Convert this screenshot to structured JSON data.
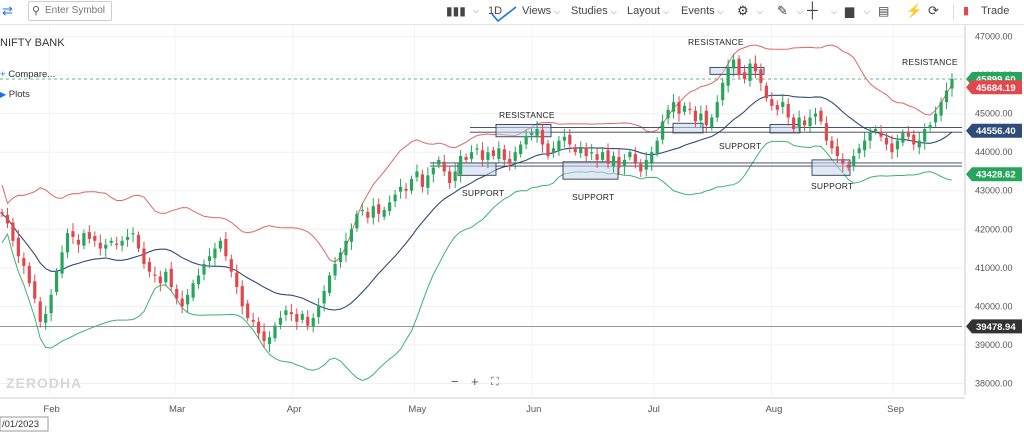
{
  "toolbar": {
    "search_placeholder": "Enter Symbol",
    "interval": "1D",
    "views": "Views",
    "studies": "Studies",
    "layout": "Layout",
    "events": "Events",
    "trade": "Trade"
  },
  "left_panel": {
    "symbol": "NIFTY BANK",
    "compare": "Compare...",
    "plots": "Plots"
  },
  "watermark": "ZERODHA",
  "colors": {
    "up": "#26a65b",
    "down": "#e0484e",
    "upper_band": "#e06666",
    "lower_band": "#3cb371",
    "middle_band": "#2e4b7a",
    "accent": "#1a73e8"
  },
  "chart_data": {
    "type": "candlestick",
    "y_ticks": [
      38000,
      39000,
      40000,
      41000,
      42000,
      43000,
      44000,
      45000,
      46000,
      47000
    ],
    "y_tick_labels": [
      "38000.00",
      "39000.00",
      "40000.00",
      "41000.00",
      "42000.00",
      "43000.00",
      "44000.00",
      "45000.00",
      "46000.00",
      "47000.00"
    ],
    "x_labels": [
      "Feb",
      "Mar",
      "Apr",
      "May",
      "Jun",
      "Jul",
      "Aug",
      "Sep"
    ],
    "crosshair_date": "/01/2023",
    "price_badges": [
      {
        "value": 45899.6,
        "label": "45899.60",
        "color": "#26a65b"
      },
      {
        "value": 45684.19,
        "label": "45684.19",
        "color": "#e0484e"
      },
      {
        "value": 44556.4,
        "label": "44556.40",
        "color": "#2e4b7a"
      },
      {
        "value": 43428.62,
        "label": "43428.62",
        "color": "#26a65b"
      },
      {
        "value": 39478.94,
        "label": "39478.94",
        "color": "#333333"
      }
    ],
    "annotations": [
      {
        "text": "RESISTANCE",
        "x_day": 29,
        "price": 46600
      },
      {
        "text": "RESISTANCE",
        "x_day": 37,
        "price": 46350
      },
      {
        "text": "RESISTANCE",
        "x_day": 10,
        "price": 45300
      },
      {
        "text": "SUPPORT",
        "x_day": 5,
        "price": 43000
      },
      {
        "text": "SUPPORT",
        "x_day": 15,
        "price": 42900
      },
      {
        "text": "SUPPORT",
        "x_day": 31,
        "price": 44100
      },
      {
        "text": "SUPPORT",
        "x_day": 34,
        "price": 43150
      }
    ],
    "closes": [
      42400,
      42150,
      41700,
      41300,
      41050,
      40600,
      40200,
      39600,
      39800,
      40300,
      40900,
      41400,
      41900,
      41800,
      41600,
      41900,
      41750,
      41700,
      41500,
      41600,
      41700,
      41600,
      41700,
      41800,
      41900,
      41500,
      41100,
      40900,
      40800,
      40600,
      40900,
      40500,
      40200,
      40000,
      40300,
      40600,
      40800,
      41100,
      41300,
      41500,
      41700,
      41300,
      40900,
      40500,
      40000,
      39700,
      39600,
      39300,
      39100,
      39200,
      39500,
      39700,
      39900,
      39800,
      39600,
      39800,
      39500,
      39700,
      40000,
      40400,
      40800,
      41100,
      41400,
      41700,
      42000,
      42400,
      42500,
      42300,
      42600,
      42400,
      42500,
      42700,
      42900,
      43100,
      43000,
      43300,
      43500,
      43100,
      43400,
      43600,
      43800,
      43500,
      43200,
      43500,
      43900,
      43800,
      44000,
      44100,
      43800,
      44000,
      43900,
      44100,
      43800,
      43700,
      44000,
      44200,
      44400,
      44500,
      44600,
      44200,
      43900,
      44100,
      44300,
      44400,
      44200,
      44000,
      44100,
      43900,
      44000,
      43800,
      44000,
      43700,
      43900,
      43600,
      43800,
      44000,
      43700,
      43500,
      43800,
      44000,
      44300,
      44800,
      45100,
      45300,
      45000,
      45200,
      45100,
      44800,
      45000,
      44700,
      44900,
      45300,
      45800,
      46200,
      46400,
      46000,
      45900,
      46300,
      46100,
      45800,
      45400,
      45200,
      45100,
      45300,
      44900,
      44600,
      44900,
      44700,
      44900,
      45000,
      44800,
      44300,
      44100,
      43900,
      43700,
      43600,
      43900,
      44100,
      44300,
      44500,
      44600,
      44400,
      44200,
      44000,
      44300,
      44500,
      44400,
      44200,
      44300,
      44600,
      44700,
      45000,
      45300,
      45600,
      45900
    ]
  }
}
